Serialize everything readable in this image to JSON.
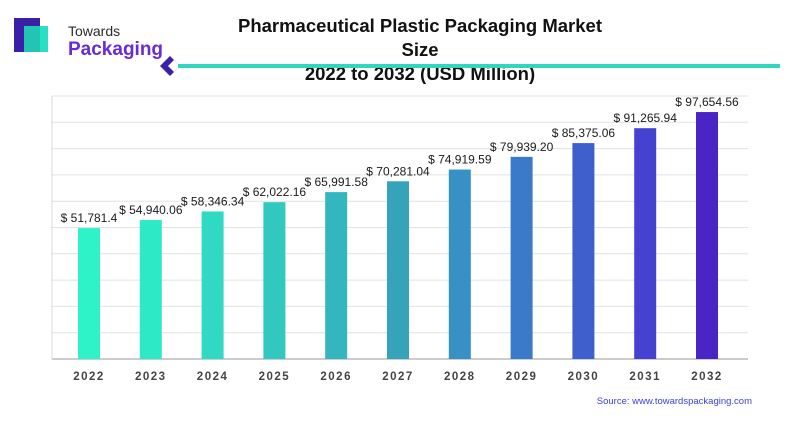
{
  "brand": {
    "line1": "Towards",
    "line2": "Packaging",
    "colors": {
      "icon_dark": "#3b1fa8",
      "icon_light": "#28e0c4",
      "text_accent": "#6a2bd6"
    }
  },
  "title_lines": [
    "Pharmaceutical Plastic Packaging Market Size",
    "2022 to 2032 (USD Million)"
  ],
  "source_text": "Source: www.towardspackaging.com",
  "accent_colors": {
    "divider": "#2fd7bf",
    "divider_mark": "#3b1fa8"
  },
  "chart_data": {
    "type": "bar",
    "title": "Pharmaceutical Plastic Packaging Market Size 2022 to 2032 (USD Million)",
    "categories": [
      "2022",
      "2023",
      "2024",
      "2025",
      "2026",
      "2027",
      "2028",
      "2029",
      "2030",
      "2031",
      "2032"
    ],
    "values": [
      51781.4,
      54940.06,
      58346.34,
      62022.16,
      65991.58,
      70281.04,
      74919.59,
      79939.2,
      85375.06,
      91265.94,
      97654.56
    ],
    "value_labels": [
      "$ 51,781.4",
      "$ 54,940.06",
      "$ 58,346.34",
      "$ 62,022.16",
      "$ 65,991.58",
      "$ 70,281.04",
      "$ 74,919.59",
      "$ 79,939.20",
      "$ 85,375.06",
      "$ 91,265.94",
      "$ 97,654.56"
    ],
    "bar_colors": [
      "#2ef3c8",
      "#2ee9c6",
      "#2fd9c3",
      "#31c8c0",
      "#33b6bd",
      "#35a4ba",
      "#3791c4",
      "#3a7ac8",
      "#3f5fcd",
      "#4542cf",
      "#4b25c4"
    ],
    "ylim": [
      0,
      104000
    ],
    "grid": true,
    "xlabel": "",
    "ylabel": ""
  }
}
